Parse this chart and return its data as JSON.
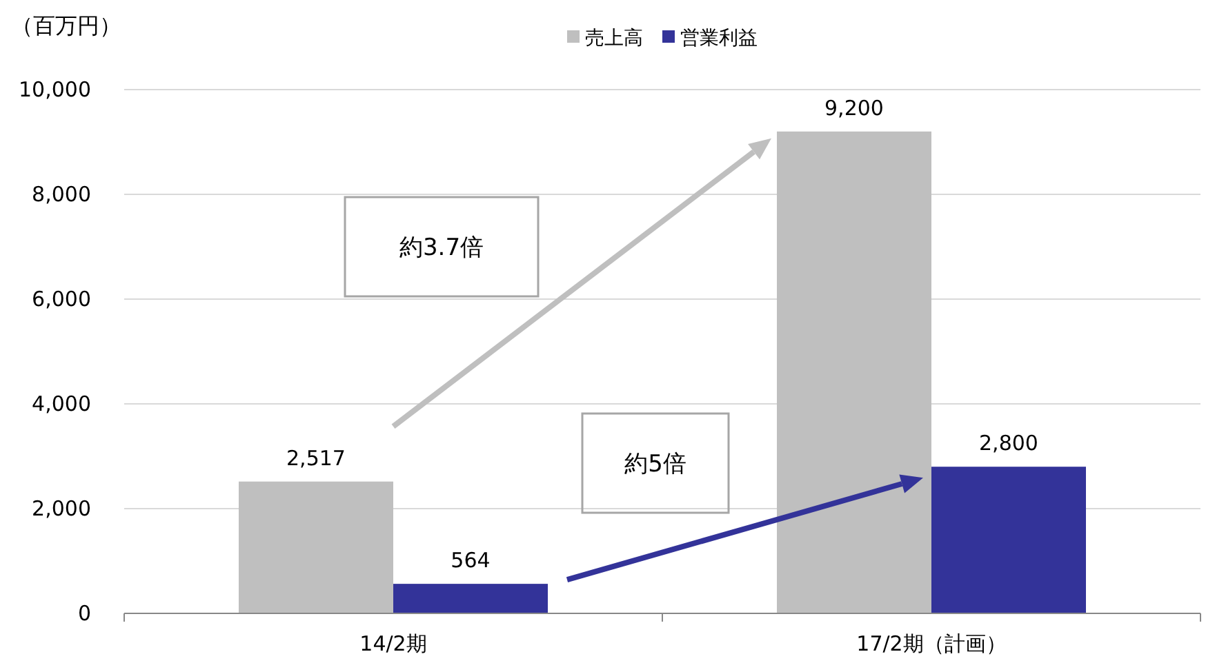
{
  "chart_data": {
    "type": "bar",
    "ylabel": "（百万円）",
    "categories": [
      "14/2期",
      "17/2期（計画）"
    ],
    "series": [
      {
        "name": "売上高",
        "color": "#bfbfbf",
        "values": [
          2517,
          9200
        ],
        "value_labels": [
          "2,517",
          "9,200"
        ]
      },
      {
        "name": "営業利益",
        "color": "#333399",
        "values": [
          564,
          2800
        ],
        "value_labels": [
          "564",
          "2,800"
        ]
      }
    ],
    "ylim": [
      0,
      10000
    ],
    "yticks": [
      {
        "value": 0,
        "label": "0"
      },
      {
        "value": 2000,
        "label": "2,000"
      },
      {
        "value": 4000,
        "label": "4,000"
      },
      {
        "value": 6000,
        "label": "6,000"
      },
      {
        "value": 8000,
        "label": "8,000"
      },
      {
        "value": 10000,
        "label": "10,000"
      }
    ],
    "grid": "y",
    "legend": "top",
    "annotations": [
      "約3.7倍",
      "約5倍"
    ]
  }
}
